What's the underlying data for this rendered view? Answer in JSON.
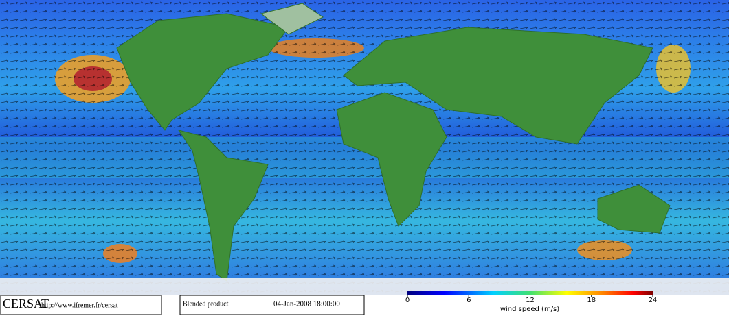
{
  "footer": {
    "logo": "CERSAT",
    "url": "http://www.ifremer.fr/cersat",
    "product": "Blended product",
    "date": "04-Jan-2008 18:00:00"
  },
  "colorbar": {
    "label": "wind speed (m/s)",
    "lim": [
      0,
      24
    ],
    "ticks": [
      0,
      6,
      12,
      18,
      24
    ]
  }
}
